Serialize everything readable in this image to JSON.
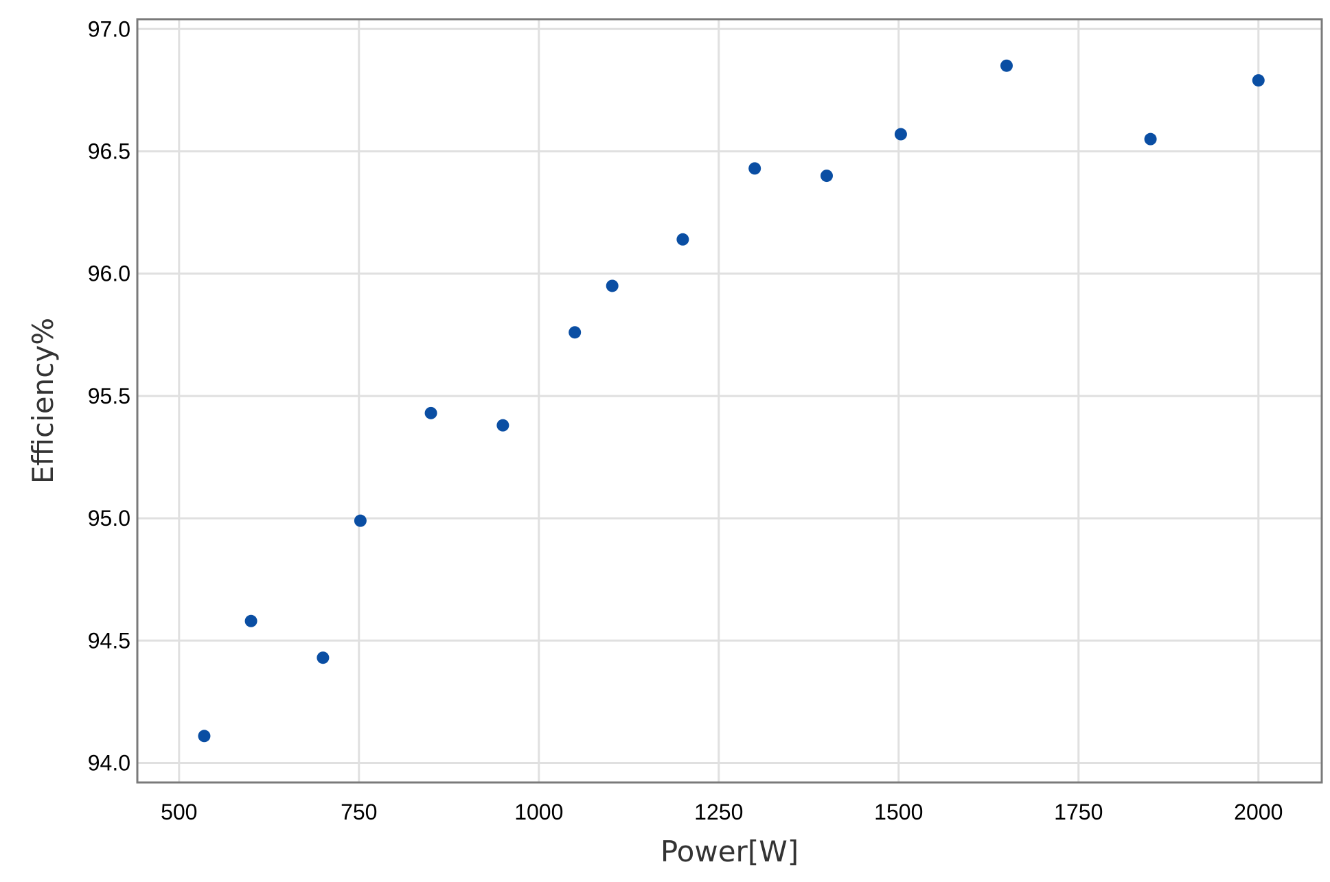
{
  "chart_data": {
    "type": "scatter",
    "title": "",
    "xlabel": "Power[W]",
    "ylabel": "Efficiency%",
    "xlim": [
      442,
      2088
    ],
    "ylim": [
      93.92,
      97.04
    ],
    "x_ticks": [
      500,
      750,
      1000,
      1250,
      1500,
      1750,
      2000
    ],
    "y_ticks": [
      94.0,
      94.5,
      95.0,
      95.5,
      96.0,
      96.5,
      97.0
    ],
    "x_tick_labels": [
      "500",
      "750",
      "1000",
      "1250",
      "1500",
      "1750",
      "2000"
    ],
    "y_tick_labels": [
      "94.0",
      "94.5",
      "95.0",
      "95.5",
      "96.0",
      "96.5",
      "97.0"
    ],
    "grid": true,
    "marker_color": "#0a4ea3",
    "series": [
      {
        "points": [
          {
            "x": 535,
            "y": 94.11
          },
          {
            "x": 600,
            "y": 94.58
          },
          {
            "x": 700,
            "y": 94.43
          },
          {
            "x": 752,
            "y": 94.99
          },
          {
            "x": 850,
            "y": 95.43
          },
          {
            "x": 950,
            "y": 95.38
          },
          {
            "x": 1050,
            "y": 95.76
          },
          {
            "x": 1102,
            "y": 95.95
          },
          {
            "x": 1200,
            "y": 96.14
          },
          {
            "x": 1300,
            "y": 96.43
          },
          {
            "x": 1400,
            "y": 96.4
          },
          {
            "x": 1503,
            "y": 96.57
          },
          {
            "x": 1650,
            "y": 96.85
          },
          {
            "x": 1850,
            "y": 96.55
          },
          {
            "x": 2000,
            "y": 96.79
          }
        ]
      }
    ]
  }
}
